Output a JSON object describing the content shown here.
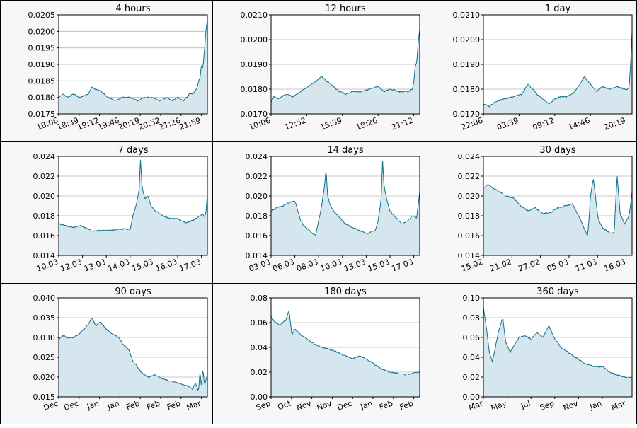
{
  "chart_data": [
    {
      "type": "area",
      "title": "4 hours",
      "xlabel": "",
      "ylabel": "",
      "x_tick_labels": [
        "18:06",
        "18:39",
        "19:12",
        "19:46",
        "20:19",
        "20:52",
        "21:26",
        "21:59"
      ],
      "y_ticks": [
        0.0175,
        0.018,
        0.0185,
        0.019,
        0.0195,
        0.02,
        0.0205
      ],
      "y_tick_labels": [
        "0.0175",
        "0.0180",
        "0.0185",
        "0.0190",
        "0.0195",
        "0.0200",
        "0.0205"
      ],
      "ylim": [
        0.0175,
        0.0205
      ],
      "grid": "horizontal",
      "series": [
        {
          "x": [
            0.0,
            0.03,
            0.06,
            0.1,
            0.14,
            0.2,
            0.22,
            0.28,
            0.33,
            0.38,
            0.43,
            0.48,
            0.53,
            0.58,
            0.63,
            0.68,
            0.73,
            0.76,
            0.8,
            0.84,
            0.86,
            0.88,
            0.9,
            0.92,
            0.93,
            0.95,
            0.96,
            0.97,
            0.98,
            0.99,
            1.0
          ],
          "y": [
            0.018,
            0.0181,
            0.018,
            0.0181,
            0.018,
            0.0181,
            0.0183,
            0.0182,
            0.018,
            0.0179,
            0.018,
            0.018,
            0.0179,
            0.018,
            0.018,
            0.0179,
            0.018,
            0.0179,
            0.018,
            0.0179,
            0.018,
            0.0181,
            0.0181,
            0.0182,
            0.0183,
            0.0186,
            0.019,
            0.0189,
            0.0194,
            0.02,
            0.0204
          ]
        }
      ]
    },
    {
      "type": "area",
      "title": "12 hours",
      "xlabel": "",
      "ylabel": "",
      "x_tick_labels": [
        "10:06",
        "12:52",
        "15:39",
        "18:26",
        "21:12"
      ],
      "y_ticks": [
        0.017,
        0.018,
        0.019,
        0.02,
        0.021
      ],
      "y_tick_labels": [
        "0.0170",
        "0.0180",
        "0.0190",
        "0.0200",
        "0.0210"
      ],
      "ylim": [
        0.017,
        0.021
      ],
      "grid": "horizontal",
      "series": [
        {
          "x": [
            0.0,
            0.02,
            0.05,
            0.1,
            0.15,
            0.2,
            0.25,
            0.3,
            0.34,
            0.38,
            0.42,
            0.46,
            0.5,
            0.55,
            0.6,
            0.66,
            0.72,
            0.76,
            0.8,
            0.86,
            0.92,
            0.95,
            0.96,
            0.97,
            0.98,
            0.99,
            1.0
          ],
          "y": [
            0.0175,
            0.0177,
            0.0176,
            0.0178,
            0.0177,
            0.0179,
            0.0181,
            0.0183,
            0.0185,
            0.0183,
            0.0181,
            0.0179,
            0.0178,
            0.0179,
            0.0179,
            0.018,
            0.0181,
            0.0179,
            0.018,
            0.0179,
            0.0179,
            0.018,
            0.0183,
            0.0189,
            0.0191,
            0.0199,
            0.0204
          ]
        }
      ]
    },
    {
      "type": "area",
      "title": "1 day",
      "xlabel": "",
      "ylabel": "",
      "x_tick_labels": [
        "22:06",
        "03:39",
        "09:12",
        "14:46",
        "20:19"
      ],
      "y_ticks": [
        0.017,
        0.018,
        0.019,
        0.02,
        0.021
      ],
      "y_tick_labels": [
        "0.0170",
        "0.0180",
        "0.0190",
        "0.0200",
        "0.0210"
      ],
      "ylim": [
        0.017,
        0.021
      ],
      "grid": "horizontal",
      "series": [
        {
          "x": [
            0.0,
            0.04,
            0.08,
            0.14,
            0.2,
            0.26,
            0.3,
            0.33,
            0.36,
            0.4,
            0.44,
            0.48,
            0.52,
            0.56,
            0.6,
            0.64,
            0.66,
            0.68,
            0.72,
            0.76,
            0.8,
            0.85,
            0.9,
            0.95,
            0.97,
            0.98,
            0.99,
            1.0
          ],
          "y": [
            0.0174,
            0.0173,
            0.0175,
            0.0176,
            0.0177,
            0.0178,
            0.0182,
            0.018,
            0.0178,
            0.0176,
            0.0174,
            0.0176,
            0.0177,
            0.0177,
            0.0178,
            0.0181,
            0.0183,
            0.0185,
            0.0182,
            0.0179,
            0.0181,
            0.018,
            0.0181,
            0.018,
            0.018,
            0.0181,
            0.019,
            0.0203
          ]
        }
      ]
    },
    {
      "type": "area",
      "title": "7 days",
      "xlabel": "",
      "ylabel": "",
      "x_tick_labels": [
        "10.03",
        "12.03",
        "13.03",
        "14.03",
        "15.03",
        "16.03",
        "17.03"
      ],
      "y_ticks": [
        0.014,
        0.016,
        0.018,
        0.02,
        0.022,
        0.024
      ],
      "y_tick_labels": [
        "0.014",
        "0.016",
        "0.018",
        "0.020",
        "0.022",
        "0.024"
      ],
      "ylim": [
        0.014,
        0.024
      ],
      "grid": "horizontal",
      "series": [
        {
          "x": [
            0.0,
            0.05,
            0.1,
            0.14,
            0.18,
            0.22,
            0.3,
            0.38,
            0.44,
            0.48,
            0.5,
            0.52,
            0.54,
            0.55,
            0.56,
            0.58,
            0.6,
            0.62,
            0.65,
            0.7,
            0.75,
            0.8,
            0.85,
            0.9,
            0.93,
            0.95,
            0.97,
            0.98,
            0.99,
            1.0
          ],
          "y": [
            0.0172,
            0.017,
            0.0168,
            0.017,
            0.0168,
            0.0165,
            0.0165,
            0.0166,
            0.0167,
            0.0166,
            0.018,
            0.019,
            0.0205,
            0.0236,
            0.021,
            0.0197,
            0.02,
            0.019,
            0.0185,
            0.018,
            0.0177,
            0.0177,
            0.0173,
            0.0175,
            0.0178,
            0.018,
            0.0182,
            0.0179,
            0.0182,
            0.0204
          ]
        }
      ]
    },
    {
      "type": "area",
      "title": "14 days",
      "xlabel": "",
      "ylabel": "",
      "x_tick_labels": [
        "03.03",
        "06.03",
        "08.03",
        "10.03",
        "13.03",
        "15.03",
        "17.03"
      ],
      "y_ticks": [
        0.014,
        0.016,
        0.018,
        0.02,
        0.022,
        0.024
      ],
      "y_tick_labels": [
        "0.014",
        "0.016",
        "0.018",
        "0.020",
        "0.022",
        "0.024"
      ],
      "ylim": [
        0.014,
        0.024
      ],
      "grid": "horizontal",
      "series": [
        {
          "x": [
            0.0,
            0.04,
            0.08,
            0.12,
            0.16,
            0.18,
            0.2,
            0.22,
            0.26,
            0.3,
            0.32,
            0.34,
            0.36,
            0.37,
            0.38,
            0.4,
            0.42,
            0.45,
            0.5,
            0.55,
            0.6,
            0.65,
            0.7,
            0.72,
            0.74,
            0.75,
            0.76,
            0.78,
            0.8,
            0.84,
            0.88,
            0.92,
            0.95,
            0.98,
            1.0
          ],
          "y": [
            0.0185,
            0.0188,
            0.019,
            0.0193,
            0.0195,
            0.0185,
            0.0175,
            0.017,
            0.0165,
            0.016,
            0.0175,
            0.019,
            0.021,
            0.0228,
            0.02,
            0.019,
            0.0185,
            0.018,
            0.0172,
            0.0168,
            0.0165,
            0.0162,
            0.0165,
            0.0175,
            0.0195,
            0.0236,
            0.021,
            0.0195,
            0.0185,
            0.0178,
            0.0172,
            0.0175,
            0.018,
            0.0178,
            0.0204
          ]
        }
      ]
    },
    {
      "type": "area",
      "title": "30 days",
      "xlabel": "",
      "ylabel": "",
      "x_tick_labels": [
        "15.02",
        "21.02",
        "27.02",
        "05.03",
        "11.03",
        "16.03"
      ],
      "y_ticks": [
        0.014,
        0.016,
        0.018,
        0.02,
        0.022,
        0.024
      ],
      "y_tick_labels": [
        "0.014",
        "0.016",
        "0.018",
        "0.020",
        "0.022",
        "0.024"
      ],
      "ylim": [
        0.014,
        0.024
      ],
      "grid": "horizontal",
      "series": [
        {
          "x": [
            0.0,
            0.03,
            0.06,
            0.1,
            0.15,
            0.2,
            0.25,
            0.3,
            0.35,
            0.4,
            0.45,
            0.5,
            0.55,
            0.6,
            0.64,
            0.67,
            0.7,
            0.71,
            0.72,
            0.74,
            0.77,
            0.8,
            0.83,
            0.86,
            0.88,
            0.89,
            0.9,
            0.92,
            0.95,
            0.98,
            1.0
          ],
          "y": [
            0.0208,
            0.0212,
            0.0208,
            0.0205,
            0.02,
            0.0198,
            0.019,
            0.0185,
            0.0188,
            0.0182,
            0.0183,
            0.0188,
            0.019,
            0.0192,
            0.018,
            0.017,
            0.016,
            0.0175,
            0.02,
            0.0218,
            0.0178,
            0.0168,
            0.0165,
            0.0162,
            0.0163,
            0.0195,
            0.022,
            0.0182,
            0.0172,
            0.018,
            0.0204
          ]
        }
      ]
    },
    {
      "type": "area",
      "title": "90 days",
      "xlabel": "",
      "ylabel": "",
      "x_tick_labels": [
        "Dec",
        "Dec",
        "Jan",
        "Jan",
        "Feb",
        "Feb",
        "Feb",
        "Mar"
      ],
      "y_ticks": [
        0.015,
        0.02,
        0.025,
        0.03,
        0.035,
        0.04
      ],
      "y_tick_labels": [
        "0.015",
        "0.020",
        "0.025",
        "0.030",
        "0.035",
        "0.040"
      ],
      "ylim": [
        0.015,
        0.04
      ],
      "grid": "horizontal",
      "series": [
        {
          "x": [
            0.0,
            0.03,
            0.06,
            0.1,
            0.14,
            0.18,
            0.2,
            0.22,
            0.25,
            0.28,
            0.32,
            0.36,
            0.4,
            0.44,
            0.47,
            0.5,
            0.53,
            0.56,
            0.6,
            0.65,
            0.7,
            0.75,
            0.8,
            0.85,
            0.88,
            0.9,
            0.92,
            0.94,
            0.95,
            0.96,
            0.97,
            0.98,
            1.0
          ],
          "y": [
            0.0295,
            0.0305,
            0.0298,
            0.03,
            0.031,
            0.0325,
            0.0335,
            0.035,
            0.033,
            0.034,
            0.032,
            0.031,
            0.03,
            0.028,
            0.027,
            0.024,
            0.0225,
            0.021,
            0.02,
            0.0205,
            0.0195,
            0.019,
            0.0185,
            0.018,
            0.0175,
            0.017,
            0.0185,
            0.0165,
            0.021,
            0.0178,
            0.0222,
            0.018,
            0.0205
          ]
        }
      ]
    },
    {
      "type": "area",
      "title": "180 days",
      "xlabel": "",
      "ylabel": "",
      "x_tick_labels": [
        "Sep",
        "Oct",
        "Nov",
        "Nov",
        "Dec",
        "Jan",
        "Feb",
        "Feb"
      ],
      "y_ticks": [
        0.0,
        0.02,
        0.04,
        0.06,
        0.08
      ],
      "y_tick_labels": [
        "0.00",
        "0.02",
        "0.04",
        "0.06",
        "0.08"
      ],
      "ylim": [
        0.0,
        0.08
      ],
      "grid": "horizontal",
      "series": [
        {
          "x": [
            0.0,
            0.03,
            0.06,
            0.1,
            0.12,
            0.14,
            0.16,
            0.2,
            0.25,
            0.3,
            0.35,
            0.4,
            0.45,
            0.5,
            0.55,
            0.6,
            0.65,
            0.7,
            0.75,
            0.8,
            0.85,
            0.9,
            0.95,
            1.0
          ],
          "y": [
            0.065,
            0.06,
            0.058,
            0.062,
            0.07,
            0.05,
            0.055,
            0.05,
            0.046,
            0.042,
            0.04,
            0.038,
            0.036,
            0.033,
            0.031,
            0.033,
            0.03,
            0.026,
            0.022,
            0.02,
            0.019,
            0.018,
            0.019,
            0.02
          ]
        }
      ]
    },
    {
      "type": "area",
      "title": "360 days",
      "xlabel": "",
      "ylabel": "",
      "x_tick_labels": [
        "Mar",
        "May",
        "Jul",
        "Sep",
        "Nov",
        "Jan",
        "Mar"
      ],
      "y_ticks": [
        0.0,
        0.02,
        0.04,
        0.06,
        0.08,
        0.1
      ],
      "y_tick_labels": [
        "0.00",
        "0.02",
        "0.04",
        "0.06",
        "0.08",
        "0.10"
      ],
      "ylim": [
        0.0,
        0.1
      ],
      "grid": "horizontal",
      "series": [
        {
          "x": [
            0.0,
            0.02,
            0.04,
            0.06,
            0.08,
            0.1,
            0.13,
            0.15,
            0.18,
            0.2,
            0.24,
            0.28,
            0.32,
            0.36,
            0.4,
            0.44,
            0.48,
            0.5,
            0.52,
            0.56,
            0.6,
            0.64,
            0.68,
            0.72,
            0.76,
            0.8,
            0.85,
            0.9,
            0.95,
            1.0
          ],
          "y": [
            0.09,
            0.07,
            0.045,
            0.035,
            0.05,
            0.065,
            0.08,
            0.055,
            0.045,
            0.05,
            0.06,
            0.062,
            0.058,
            0.065,
            0.06,
            0.072,
            0.058,
            0.055,
            0.05,
            0.046,
            0.042,
            0.038,
            0.034,
            0.032,
            0.03,
            0.031,
            0.025,
            0.022,
            0.02,
            0.019
          ]
        }
      ]
    }
  ]
}
